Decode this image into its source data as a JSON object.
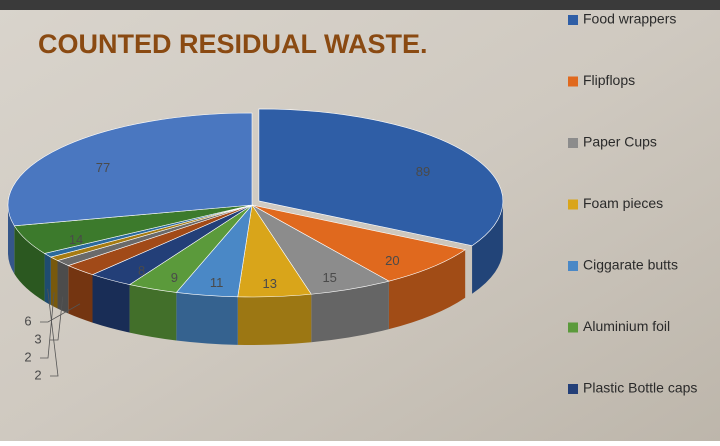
{
  "chart_data": {
    "type": "pie",
    "title": "COUNTED RESIDUAL WASTE.",
    "categories": [
      "Food wrappers",
      "Flipflops",
      "Paper Cups",
      "Foam pieces",
      "Ciggarate butts",
      "Aluminium foil",
      "Plastic Bottle caps",
      null,
      null,
      null,
      null,
      null,
      null
    ],
    "values": [
      89,
      20,
      15,
      13,
      11,
      9,
      8,
      6,
      3,
      2,
      2,
      14,
      77
    ],
    "colors": [
      "#2f5ea6",
      "#e0691e",
      "#8c8c8c",
      "#d9a51a",
      "#4a88c6",
      "#5b9a3b",
      "#233f78",
      "#a14a18",
      "#6a6a6a",
      "#a67b12",
      "#2b6a9c",
      "#3c7a2c",
      "#4a77c0"
    ]
  }
}
